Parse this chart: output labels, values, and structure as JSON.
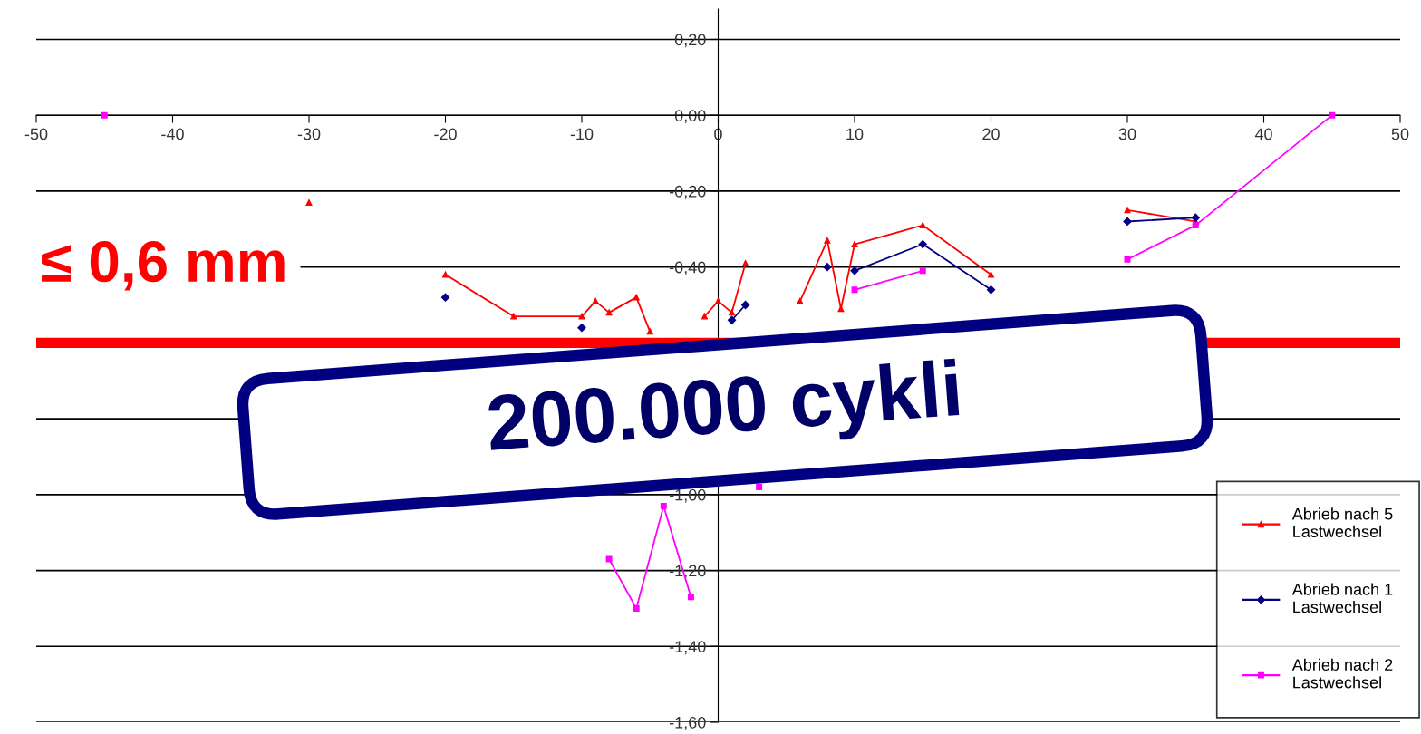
{
  "chart_data": {
    "type": "line",
    "series": [
      {
        "name": "Abrieb nach 5\nLastwechsel",
        "color": "#ff0000",
        "marker": "triangle",
        "x": [
          -30,
          -25,
          -20,
          -15,
          -10,
          -9,
          -8,
          -6,
          -5,
          -3,
          -1,
          0,
          1,
          2,
          4,
          6,
          8,
          9,
          10,
          15,
          20,
          25,
          30,
          35
        ],
        "values": [
          -0.23,
          null,
          -0.42,
          -0.53,
          -0.53,
          -0.49,
          -0.52,
          -0.48,
          -0.57,
          null,
          -0.53,
          -0.49,
          -0.52,
          -0.39,
          null,
          -0.49,
          -0.33,
          -0.51,
          -0.34,
          -0.29,
          -0.42,
          null,
          -0.25,
          -0.28
        ]
      },
      {
        "name": "Abrieb nach 1\nLastwechsel",
        "color": "#000080",
        "marker": "diamond",
        "x": [
          -20,
          -15,
          -10,
          -5,
          1,
          2,
          5,
          8,
          9,
          10,
          15,
          20,
          25,
          30,
          35
        ],
        "values": [
          -0.48,
          null,
          -0.56,
          null,
          -0.54,
          -0.5,
          null,
          -0.4,
          null,
          -0.41,
          -0.34,
          -0.46,
          null,
          -0.28,
          -0.27
        ]
      },
      {
        "name": "Abrieb nach 2\nLastwechsel",
        "color": "#ff00ff",
        "marker": "square",
        "x": [
          -45,
          -40,
          -8,
          -6,
          -4,
          -2,
          0,
          3,
          5,
          10,
          15,
          20,
          30,
          35,
          45
        ],
        "values": [
          0,
          null,
          -1.17,
          -1.3,
          -1.03,
          -1.27,
          null,
          -0.98,
          null,
          -0.46,
          -0.41,
          null,
          -0.38,
          -0.29,
          0
        ]
      }
    ],
    "xlim": [
      -50,
      50
    ],
    "xticks": [
      -50,
      -40,
      -30,
      -20,
      -10,
      0,
      10,
      20,
      30,
      40,
      50
    ],
    "ylim": [
      -1.6,
      0.28
    ],
    "yticks": [
      {
        "value": 0.2,
        "label": "0,20"
      },
      {
        "value": 0,
        "label": "0,00"
      },
      {
        "value": -0.2,
        "label": "-0,20"
      },
      {
        "value": -0.4,
        "label": "-0,40"
      },
      {
        "value": -0.6,
        "label": null
      },
      {
        "value": -0.8,
        "label": null
      },
      {
        "value": -1.0,
        "label": "-1,00"
      },
      {
        "value": -1.2,
        "label": "-1,20"
      },
      {
        "value": -1.4,
        "label": "-1,40"
      },
      {
        "value": -1.6,
        "label": "-1,60"
      }
    ],
    "grid": "y",
    "legend": "bottom right",
    "ref_lines": [
      {
        "axis": "y",
        "value": -0.6,
        "label": "≤ 0,6 mm",
        "color": "#ff0000"
      }
    ],
    "annotations": [
      "200.000 cykli"
    ]
  }
}
